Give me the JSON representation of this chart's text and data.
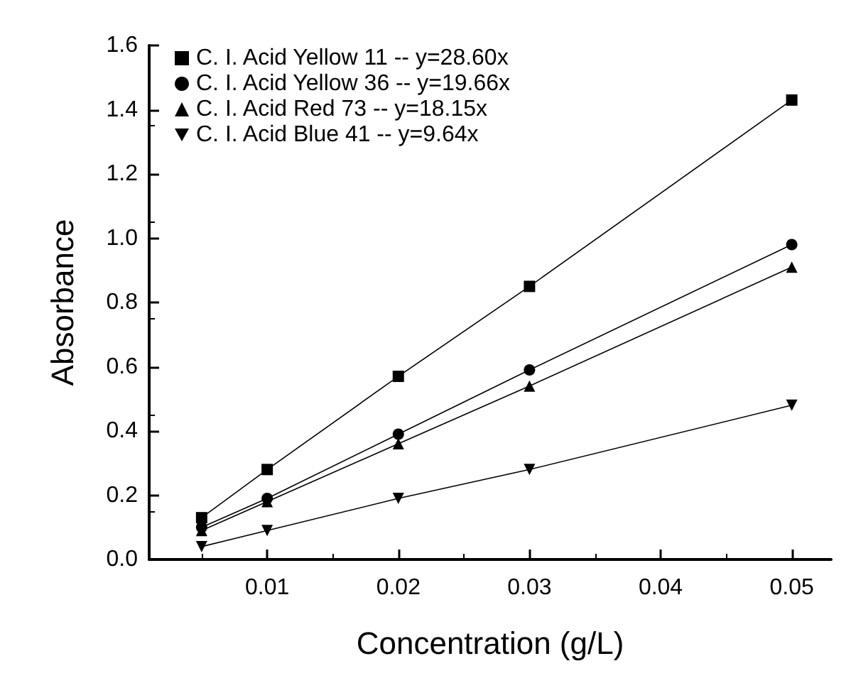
{
  "chart_data": {
    "type": "line",
    "xlabel": "Concentration (g/L)",
    "ylabel": "Absorbance",
    "x": [
      0.005,
      0.01,
      0.02,
      0.03,
      0.05
    ],
    "xlim": [
      0.001,
      0.053
    ],
    "xticks": [
      0.01,
      0.02,
      0.03,
      0.04,
      0.05
    ],
    "ylim": [
      0,
      1.6
    ],
    "yticks": [
      {
        "value": 0,
        "label": "0.0"
      },
      0.2,
      0.4,
      0.6,
      0.8,
      {
        "value": 1,
        "label": "1.0"
      },
      1.2,
      1.4,
      1.6
    ],
    "legend": "top left",
    "grid": false,
    "line_style": "solid",
    "series": [
      {
        "name": "C. I. Acid Yellow 11 -- y=28.60x",
        "color": "#000000",
        "marker": "square",
        "values": [
          0.13,
          0.28,
          0.57,
          0.85,
          1.43
        ]
      },
      {
        "name": "C. I. Acid Yellow 36 -- y=19.66x",
        "color": "#000000",
        "marker": "circle",
        "values": [
          0.1,
          0.19,
          0.39,
          0.59,
          0.98
        ]
      },
      {
        "name": "C. I. Acid Red 73 -- y=18.15x",
        "color": "#000000",
        "marker": "triangle",
        "values": [
          0.09,
          0.18,
          0.36,
          0.54,
          0.91
        ]
      },
      {
        "name": "C. I. Acid Blue 41 -- y=9.64x",
        "color": "#000000",
        "marker": "triangle-down",
        "values": [
          0.04,
          0.09,
          0.19,
          0.28,
          0.48
        ]
      }
    ]
  }
}
